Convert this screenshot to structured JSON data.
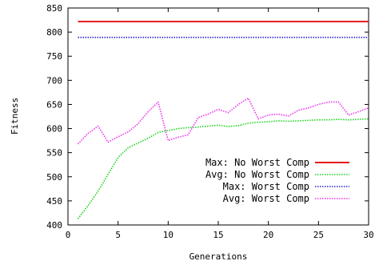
{
  "chart_data": {
    "type": "line",
    "title": "",
    "xlabel": "Generations",
    "ylabel": "Fitness",
    "xlim": [
      0,
      30
    ],
    "ylim": [
      400,
      850
    ],
    "xticks": [
      0,
      5,
      10,
      15,
      20,
      25,
      30
    ],
    "yticks": [
      400,
      450,
      500,
      550,
      600,
      650,
      700,
      750,
      800,
      850
    ],
    "grid": false,
    "legend_position": "bottom-right",
    "series": [
      {
        "name": "Max: No Worst Comp",
        "color": "#e41a1c",
        "style": "solid",
        "x": [
          1,
          30
        ],
        "y": [
          822,
          822
        ]
      },
      {
        "name": "Avg: No Worst Comp",
        "color": "#1ed31e",
        "style": "dotted",
        "x": [
          1,
          2,
          3,
          4,
          5,
          6,
          7,
          8,
          9,
          10,
          11,
          12,
          13,
          14,
          15,
          16,
          17,
          18,
          19,
          20,
          21,
          22,
          23,
          24,
          25,
          26,
          27,
          28,
          29,
          30
        ],
        "y": [
          413,
          440,
          470,
          505,
          540,
          560,
          570,
          580,
          592,
          596,
          600,
          602,
          603,
          605,
          607,
          604,
          606,
          611,
          613,
          614,
          616,
          615,
          616,
          617,
          618,
          618,
          619,
          618,
          619,
          620
        ]
      },
      {
        "name": "Max: Worst Comp",
        "color": "#2222cc",
        "style": "dotted",
        "x": [
          1,
          30
        ],
        "y": [
          789,
          789
        ]
      },
      {
        "name": "Avg: Worst Comp",
        "color": "#ee33ee",
        "style": "dotted",
        "x": [
          1,
          2,
          3,
          4,
          5,
          6,
          7,
          8,
          9,
          10,
          11,
          12,
          13,
          14,
          15,
          16,
          17,
          18,
          19,
          20,
          21,
          22,
          23,
          24,
          25,
          26,
          27,
          28,
          29,
          30
        ],
        "y": [
          568,
          590,
          605,
          572,
          583,
          593,
          610,
          635,
          655,
          575,
          582,
          587,
          623,
          630,
          640,
          633,
          650,
          663,
          620,
          628,
          630,
          626,
          638,
          643,
          650,
          655,
          655,
          628,
          635,
          643
        ]
      }
    ]
  }
}
